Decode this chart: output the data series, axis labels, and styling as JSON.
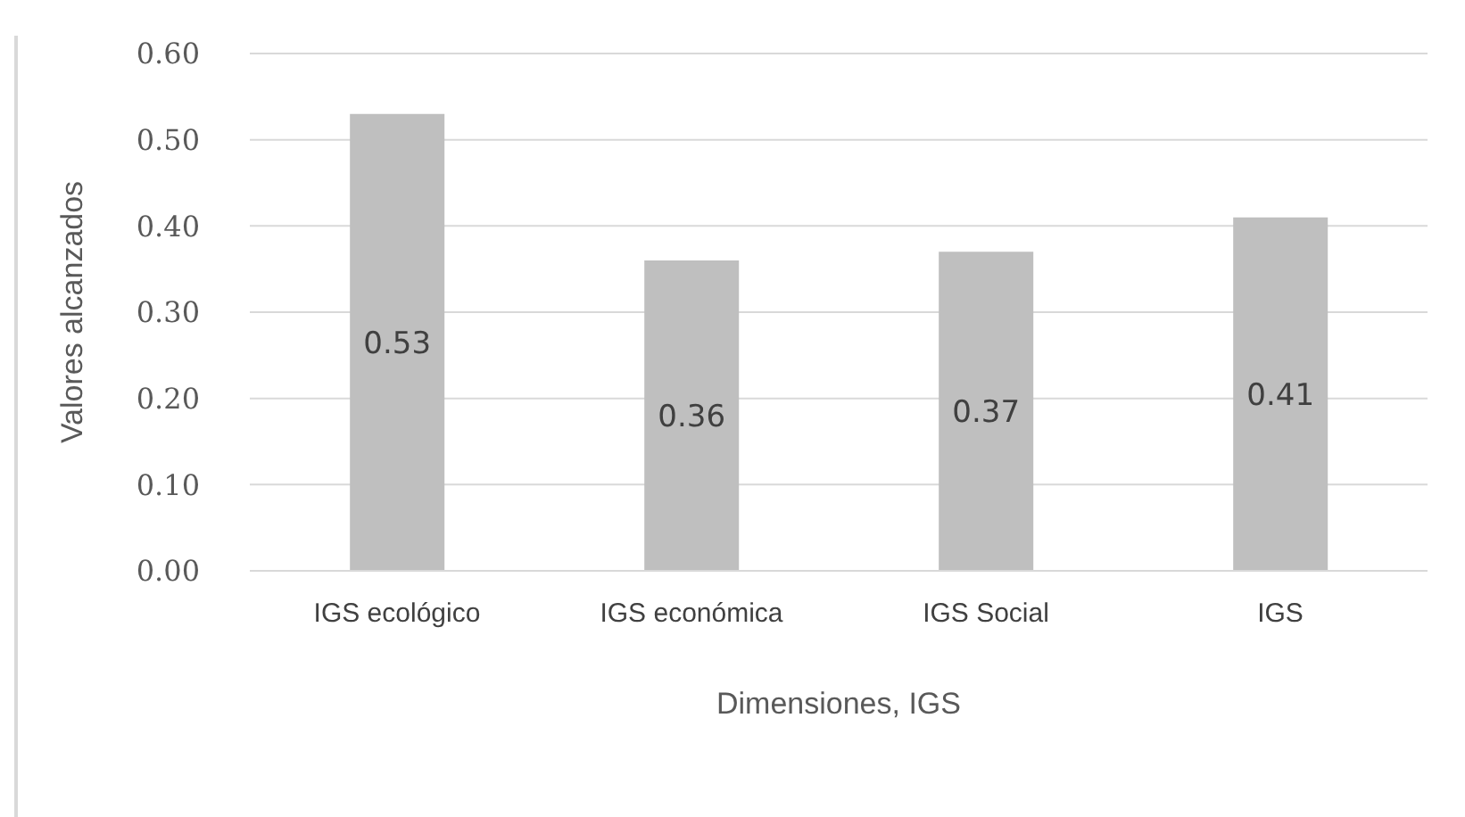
{
  "chart_data": {
    "type": "bar",
    "xlabel": "Dimensiones, IGS",
    "ylabel": "Valores alcanzados",
    "categories": [
      "IGS ecológico",
      "IGS económica",
      "IGS Social",
      "IGS"
    ],
    "values": [
      0.53,
      0.36,
      0.37,
      0.41
    ],
    "color": "#bfbfbf",
    "ylim": [
      0,
      0.6
    ],
    "yticks": [
      {
        "value": 0,
        "label": "0.00"
      },
      {
        "value": 0.1,
        "label": "0.10"
      },
      {
        "value": 0.2,
        "label": "0.20"
      },
      {
        "value": 0.3,
        "label": "0.30"
      },
      {
        "value": 0.4,
        "label": "0.40"
      },
      {
        "value": 0.5,
        "label": "0.50"
      },
      {
        "value": 0.6,
        "label": "0.60"
      }
    ],
    "grid": "y",
    "data_labels": true
  }
}
